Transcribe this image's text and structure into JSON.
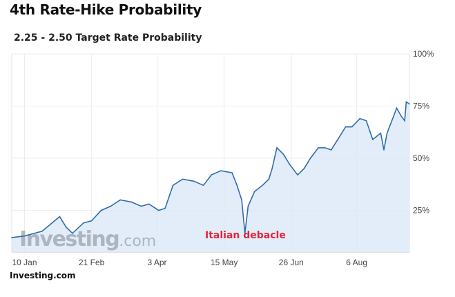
{
  "header": {
    "title": "4th Rate-Hike Probability",
    "source": "Investing.com"
  },
  "chart_data": {
    "type": "area",
    "title": "2.25 - 2.50 Target Rate Probability",
    "xlabel": "",
    "ylabel": "",
    "ylim": [
      5,
      100
    ],
    "y_ticks": [
      "25%",
      "50%",
      "75%",
      "100%"
    ],
    "y_tick_values": [
      25,
      50,
      75,
      100
    ],
    "x_ticks": [
      "10 Jan",
      "21 Feb",
      "3 Apr",
      "15 May",
      "26 Jun",
      "6 Aug"
    ],
    "x_tick_dates": [
      "Jan 10",
      "Feb 21",
      "Apr 3",
      "May 15",
      "Jun 26",
      "Aug 6"
    ],
    "grid": true,
    "line_color": "#2f6da8",
    "fill_color": "#dbe9f8",
    "annotation": {
      "text": "Italian debacle",
      "date": "May 28",
      "color": "#e8213a"
    },
    "watermark": {
      "text": "Investing",
      "suffix": ".com"
    },
    "series": [
      {
        "x": [
          "Jan 2",
          "Jan 10",
          "Jan 21",
          "Feb 1",
          "Feb 5",
          "Feb 9",
          "Feb 16",
          "Feb 21",
          "Feb 27",
          "Mar 5",
          "Mar 11",
          "Mar 18",
          "Mar 24",
          "Mar 29",
          "Apr 4",
          "Apr 8",
          "Apr 13",
          "Apr 19",
          "Apr 26",
          "May 2",
          "May 7",
          "May 13",
          "May 20",
          "May 23",
          "May 26",
          "May 28",
          "May 30",
          "Jun 3",
          "Jun 8",
          "Jun 12",
          "Jun 14",
          "Jun 17",
          "Jun 21",
          "Jun 25",
          "Jun 30",
          "Jul 4",
          "Jul 8",
          "Jul 13",
          "Jul 17",
          "Jul 21",
          "Jul 26",
          "Jul 30",
          "Aug 3",
          "Aug 8",
          "Aug 12",
          "Aug 16",
          "Aug 21",
          "Aug 23",
          "Aug 25",
          "Aug 29",
          "Aug 31",
          "Sep 3",
          "Sep 5",
          "Sep 6",
          "Sep 8"
        ],
        "values": [
          12,
          12.7,
          15,
          22,
          17,
          14,
          19,
          20,
          25,
          27,
          30,
          29,
          27,
          28,
          25,
          26,
          37,
          40,
          39,
          37,
          42,
          44,
          43,
          37,
          30,
          14,
          27,
          34,
          37,
          40,
          45,
          55,
          52,
          47,
          42,
          45,
          50,
          55,
          55,
          54,
          60,
          65,
          65,
          69,
          68,
          59,
          62,
          54,
          62,
          70,
          74,
          70,
          68,
          77,
          76
        ]
      }
    ]
  }
}
